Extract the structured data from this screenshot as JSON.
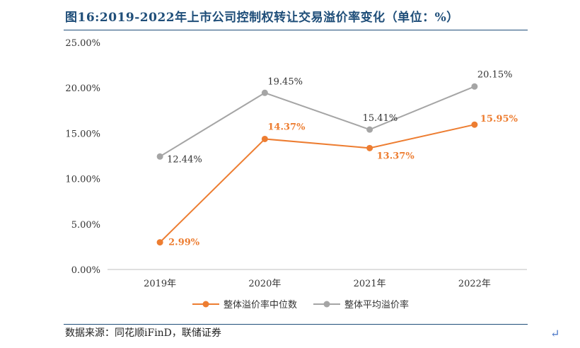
{
  "title": "图16:2019-2022年上市公司控制权转让交易溢价率变化（单位：%）",
  "source": "数据来源：同花顺iFinD，联储证券",
  "return_mark": "↵",
  "colors": {
    "series1": "#ed7d31",
    "series2": "#a5a5a5",
    "title": "#1f4e79",
    "axis": "#bfbfbf"
  },
  "chart_data": {
    "type": "line",
    "categories": [
      "2019年",
      "2020年",
      "2021年",
      "2022年"
    ],
    "ylim": [
      0,
      25
    ],
    "yticks": [
      "0.00%",
      "5.00%",
      "10.00%",
      "15.00%",
      "20.00%",
      "25.00%"
    ],
    "ytick_values": [
      0,
      5,
      10,
      15,
      20,
      25
    ],
    "series": [
      {
        "name": "整体溢价率中位数",
        "values": [
          2.99,
          14.37,
          13.37,
          15.95
        ],
        "labels": [
          "2.99%",
          "14.37%",
          "13.37%",
          "15.95%"
        ],
        "color": "#ed7d31"
      },
      {
        "name": "整体平均溢价率",
        "values": [
          12.44,
          19.45,
          15.41,
          20.15
        ],
        "labels": [
          "12.44%",
          "19.45%",
          "15.41%",
          "20.15%"
        ],
        "color": "#a5a5a5"
      }
    ],
    "legend": "bottom-center",
    "grid": false
  }
}
